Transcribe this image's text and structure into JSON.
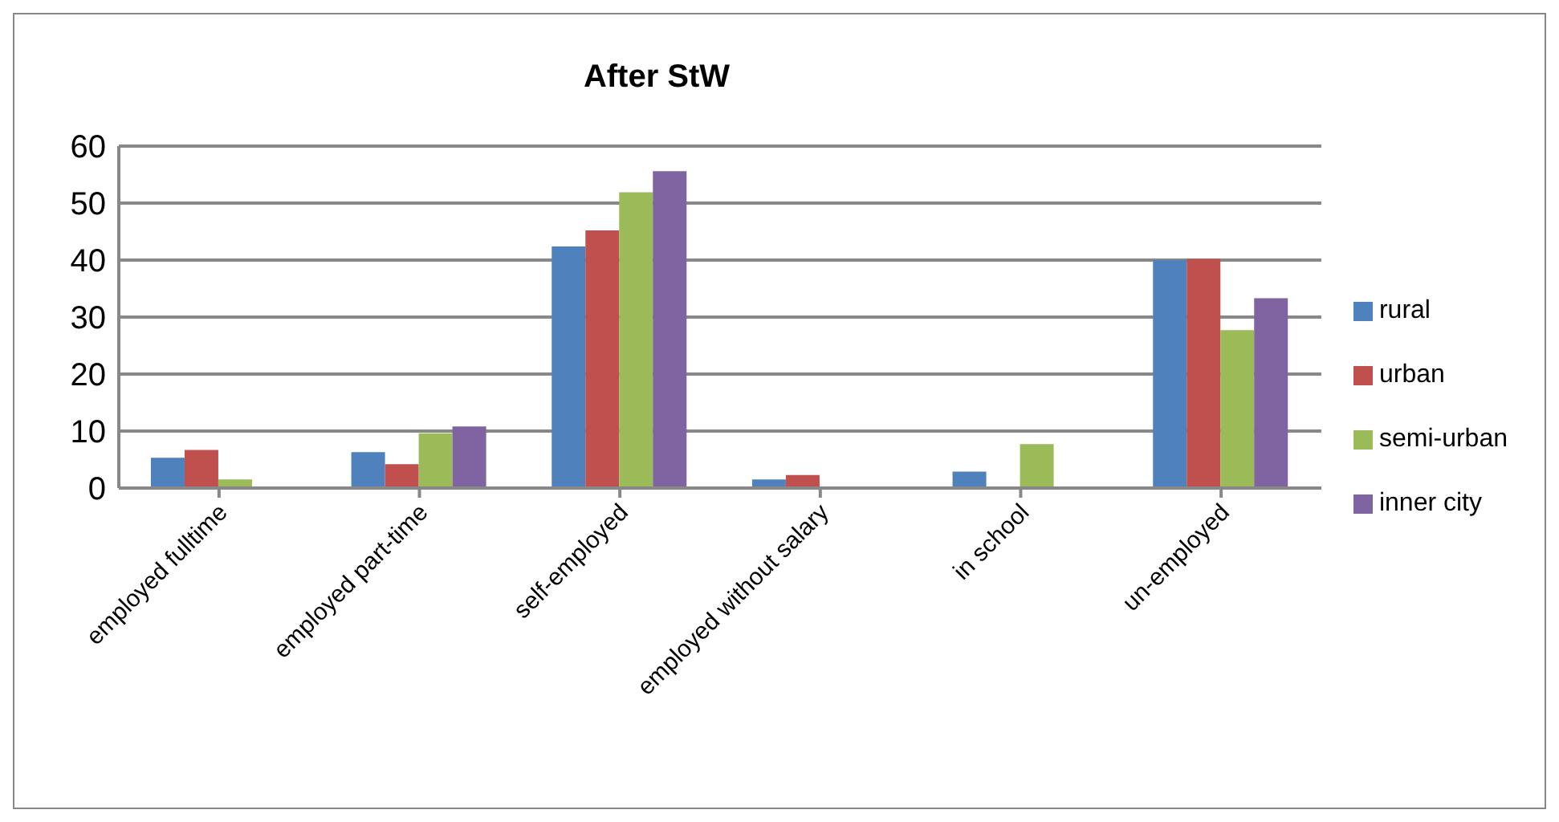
{
  "chart_data": {
    "type": "bar",
    "title": "After StW",
    "categories": [
      "employed fulltime",
      "employed part-time",
      "self-employed",
      "employed without salary",
      "in school",
      "un-employed"
    ],
    "series": [
      {
        "name": "rural",
        "color": "#4f81bd",
        "values": [
          5.3,
          6.3,
          42.4,
          1.5,
          2.9,
          40
        ]
      },
      {
        "name": "urban",
        "color": "#c0504d",
        "values": [
          6.7,
          4.2,
          45.2,
          2.3,
          0,
          40.2
        ]
      },
      {
        "name": "semi-urban",
        "color": "#9bbb59",
        "values": [
          1.5,
          9.6,
          51.9,
          0,
          7.7,
          27.7
        ]
      },
      {
        "name": "inner city",
        "color": "#8064a2",
        "values": [
          0,
          10.8,
          55.6,
          0,
          0,
          33.3
        ]
      }
    ],
    "ylim": [
      0,
      60
    ],
    "yticks": [
      0,
      10,
      20,
      30,
      40,
      50,
      60
    ],
    "grid": "y",
    "legend": "right"
  }
}
